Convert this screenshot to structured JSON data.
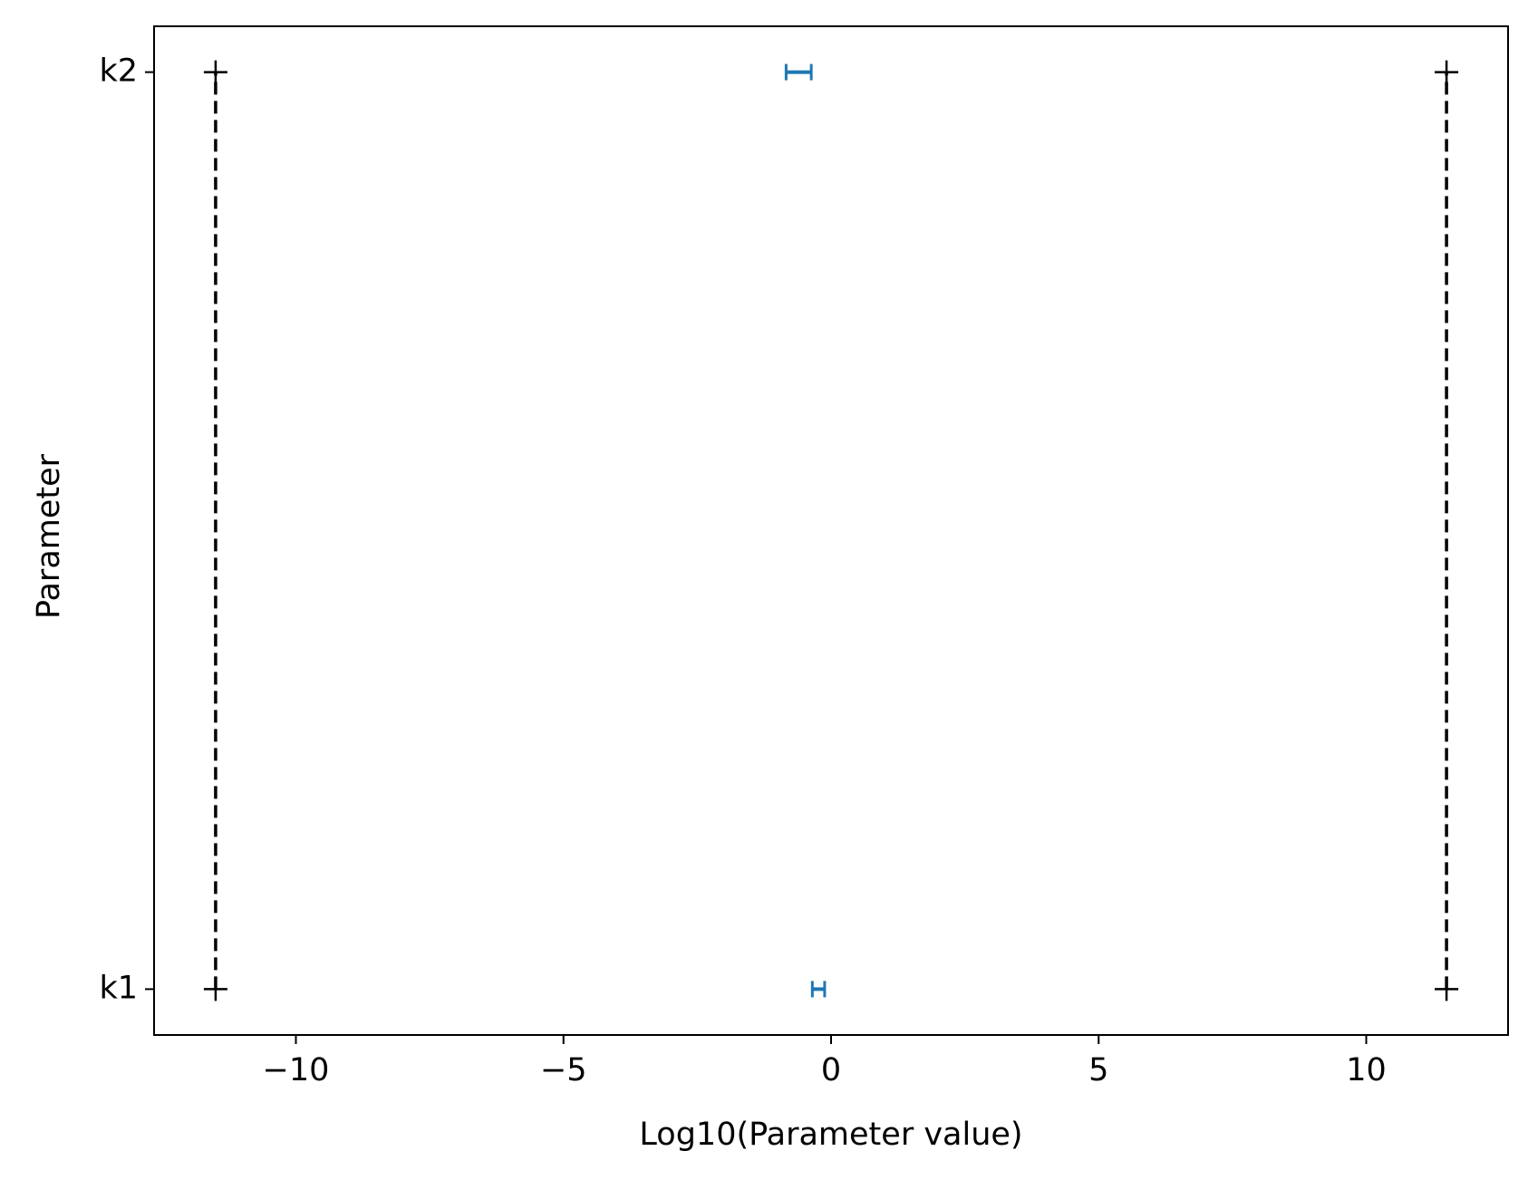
{
  "chart_data": {
    "type": "interval",
    "xlabel": "Log10(Parameter value)",
    "ylabel": "Parameter",
    "categories": [
      "k1",
      "k2"
    ],
    "lower": [
      -0.35,
      -0.84
    ],
    "upper": [
      -0.12,
      -0.37
    ],
    "color": "#1f77b4",
    "bounds": {
      "lower": -11.5,
      "upper": 11.5,
      "color": "#000000"
    },
    "xlim": [
      -12.65,
      12.65
    ],
    "ylim": [
      -0.05,
      1.05
    ],
    "xticks": [
      {
        "value": -10,
        "label": "−10"
      },
      {
        "value": -5,
        "label": "−5"
      },
      0,
      5,
      10
    ]
  }
}
